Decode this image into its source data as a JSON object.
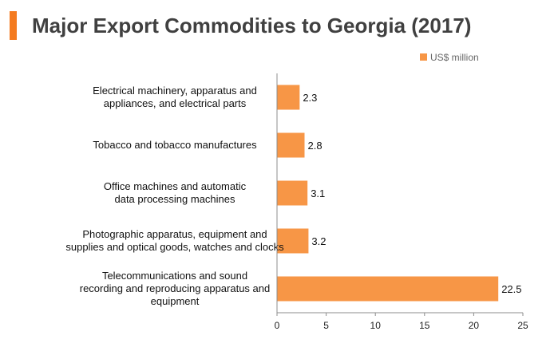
{
  "title": "Major Export Commodities to Georgia (2017)",
  "colors": {
    "accent": "#f47b20",
    "bar": "#f79646",
    "axis": "#8c8c8c"
  },
  "chart_data": {
    "type": "bar",
    "orientation": "horizontal",
    "title": "Major Export Commodities to Georgia (2017)",
    "categories": [
      [
        "Electrical machinery, apparatus and",
        "appliances, and electrical parts"
      ],
      [
        "Tobacco and tobacco manufactures"
      ],
      [
        "Office machines and automatic",
        "data processing machines"
      ],
      [
        "Photographic apparatus, equipment and",
        "supplies and optical goods, watches and clocks"
      ],
      [
        "Telecommunications and sound",
        "recording and reproducing apparatus and",
        "equipment"
      ]
    ],
    "series": [
      {
        "name": "US$ million",
        "values": [
          2.3,
          2.8,
          3.1,
          3.2,
          22.5
        ]
      }
    ],
    "value_labels": [
      "2.3",
      "2.8",
      "3.1",
      "3.2",
      "22.5"
    ],
    "xlim": [
      0,
      25
    ],
    "xticks": [
      0,
      5,
      10,
      15,
      20,
      25
    ],
    "xlabel": "",
    "ylabel": "",
    "grid": false,
    "legend": {
      "position": "top-right",
      "label": "US$ million"
    }
  }
}
